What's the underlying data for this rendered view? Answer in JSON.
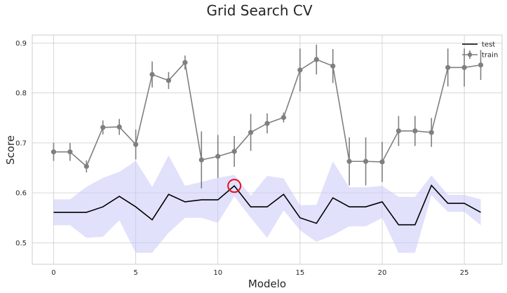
{
  "chart_data": {
    "type": "line",
    "title": "Grid Search CV",
    "xlabel": "Modelo",
    "ylabel": "Score",
    "xlim": [
      -1.3,
      27.3
    ],
    "ylim": [
      0.457,
      0.916
    ],
    "xticks": [
      0,
      5,
      10,
      15,
      20,
      25
    ],
    "yticks": [
      0.5,
      0.6,
      0.7,
      0.8,
      0.9
    ],
    "xtick_labels": [
      "0",
      "5",
      "10",
      "15",
      "20",
      "25"
    ],
    "ytick_labels": [
      "0.5",
      "0.6",
      "0.7",
      "0.8",
      "0.9"
    ],
    "grid": true,
    "legend_position": "top-right",
    "x": [
      0,
      1,
      2,
      3,
      4,
      5,
      6,
      7,
      8,
      9,
      10,
      11,
      12,
      13,
      14,
      15,
      16,
      17,
      18,
      19,
      20,
      21,
      22,
      23,
      24,
      25,
      26
    ],
    "series": [
      {
        "name": "test",
        "color": "#000000",
        "values": [
          0.561,
          0.561,
          0.561,
          0.572,
          0.593,
          0.572,
          0.546,
          0.597,
          0.582,
          0.586,
          0.586,
          0.614,
          0.572,
          0.572,
          0.597,
          0.55,
          0.539,
          0.59,
          0.572,
          0.572,
          0.582,
          0.536,
          0.536,
          0.615,
          0.579,
          0.579,
          0.561
        ],
        "band_lower": [
          0.535,
          0.535,
          0.51,
          0.512,
          0.545,
          0.48,
          0.48,
          0.52,
          0.55,
          0.55,
          0.54,
          0.593,
          0.55,
          0.51,
          0.565,
          0.525,
          0.502,
          0.515,
          0.533,
          0.533,
          0.55,
          0.48,
          0.48,
          0.595,
          0.562,
          0.562,
          0.535
        ],
        "band_upper": [
          0.587,
          0.587,
          0.612,
          0.63,
          0.642,
          0.664,
          0.612,
          0.675,
          0.614,
          0.622,
          0.63,
          0.636,
          0.594,
          0.634,
          0.629,
          0.575,
          0.576,
          0.663,
          0.611,
          0.611,
          0.614,
          0.592,
          0.592,
          0.635,
          0.596,
          0.596,
          0.587
        ],
        "band_color": "#c8c8fa"
      },
      {
        "name": "train",
        "color": "#7f7f7f",
        "values": [
          0.682,
          0.682,
          0.653,
          0.731,
          0.732,
          0.697,
          0.837,
          0.825,
          0.861,
          0.666,
          0.673,
          0.683,
          0.721,
          0.739,
          0.751,
          0.846,
          0.867,
          0.854,
          0.663,
          0.663,
          0.662,
          0.724,
          0.724,
          0.721,
          0.851,
          0.851,
          0.856
        ],
        "error": [
          0.018,
          0.018,
          0.012,
          0.014,
          0.016,
          0.03,
          0.026,
          0.017,
          0.014,
          0.057,
          0.043,
          0.031,
          0.037,
          0.02,
          0.01,
          0.043,
          0.03,
          0.034,
          0.048,
          0.048,
          0.04,
          0.03,
          0.03,
          0.029,
          0.038,
          0.038,
          0.03
        ]
      }
    ],
    "highlight": {
      "x": 11,
      "y": 0.614,
      "color": "#e8101e"
    }
  }
}
